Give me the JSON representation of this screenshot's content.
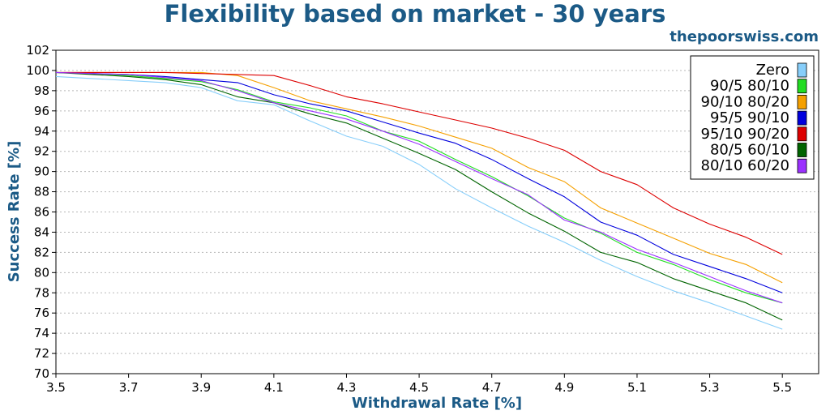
{
  "title": "Flexibility based on market - 30 years",
  "watermark": "thepoorswiss.com",
  "chart_data": {
    "type": "line",
    "title": "Flexibility based on market - 30 years",
    "xlabel": "Withdrawal Rate [%]",
    "ylabel": "Success Rate [%]",
    "xlim": [
      3.5,
      5.6
    ],
    "ylim": [
      70,
      102
    ],
    "xticks": [
      3.5,
      3.7,
      3.9,
      4.1,
      4.3,
      4.5,
      4.7,
      4.9,
      5.1,
      5.3,
      5.5
    ],
    "yticks": [
      70,
      72,
      74,
      76,
      78,
      80,
      82,
      84,
      86,
      88,
      90,
      92,
      94,
      96,
      98,
      100,
      102
    ],
    "grid": "horizontal dotted",
    "legend_position": "top-right",
    "x": [
      3.5,
      3.6,
      3.7,
      3.8,
      3.9,
      4.0,
      4.1,
      4.2,
      4.3,
      4.4,
      4.5,
      4.6,
      4.7,
      4.8,
      4.9,
      5.0,
      5.1,
      5.2,
      5.3,
      5.4,
      5.5
    ],
    "series": [
      {
        "name": "Zero",
        "color": "#87cefa",
        "values": [
          99.4,
          99.2,
          99.0,
          98.8,
          98.3,
          97.0,
          96.6,
          95.0,
          93.5,
          92.5,
          90.7,
          88.3,
          86.4,
          84.6,
          83.0,
          81.2,
          79.6,
          78.2,
          77.0,
          75.7,
          74.4
        ]
      },
      {
        "name": "90/5 80/10",
        "color": "#22dd22",
        "values": [
          99.8,
          99.7,
          99.5,
          99.2,
          98.9,
          98.1,
          96.9,
          96.3,
          95.5,
          94.0,
          93.0,
          91.2,
          89.5,
          87.6,
          85.4,
          83.9,
          82.0,
          80.8,
          79.3,
          78.0,
          77.0
        ]
      },
      {
        "name": "90/10 80/20",
        "color": "#f5a000",
        "values": [
          99.8,
          99.8,
          99.8,
          99.8,
          99.8,
          99.5,
          98.3,
          97.0,
          96.2,
          95.4,
          94.5,
          93.4,
          92.3,
          90.4,
          89.0,
          86.4,
          84.9,
          83.4,
          81.9,
          80.8,
          79.0
        ]
      },
      {
        "name": "95/5 90/10",
        "color": "#0000dd",
        "values": [
          99.8,
          99.7,
          99.6,
          99.4,
          99.1,
          98.8,
          97.6,
          96.7,
          96.0,
          94.9,
          93.8,
          92.8,
          91.2,
          89.3,
          87.5,
          85.0,
          83.7,
          81.8,
          80.6,
          79.4,
          78.0
        ]
      },
      {
        "name": "95/10 90/20",
        "color": "#dd0000",
        "values": [
          99.8,
          99.8,
          99.8,
          99.8,
          99.7,
          99.6,
          99.5,
          98.5,
          97.4,
          96.7,
          95.9,
          95.1,
          94.3,
          93.3,
          92.1,
          90.0,
          88.7,
          86.4,
          84.8,
          83.5,
          81.8
        ]
      },
      {
        "name": "80/5 60/10",
        "color": "#006400",
        "values": [
          99.8,
          99.6,
          99.4,
          99.1,
          98.6,
          97.4,
          96.8,
          95.7,
          94.8,
          93.3,
          91.8,
          90.2,
          88.0,
          85.9,
          84.1,
          82.0,
          81.0,
          79.4,
          78.2,
          77.0,
          75.3
        ]
      },
      {
        "name": "80/10 60/20",
        "color": "#9b30ff",
        "values": [
          99.8,
          99.7,
          99.6,
          99.3,
          99.0,
          98.0,
          96.8,
          96.0,
          95.2,
          94.0,
          92.7,
          91.0,
          89.3,
          87.7,
          85.2,
          84.0,
          82.3,
          81.0,
          79.6,
          78.2,
          77.0
        ]
      }
    ]
  }
}
